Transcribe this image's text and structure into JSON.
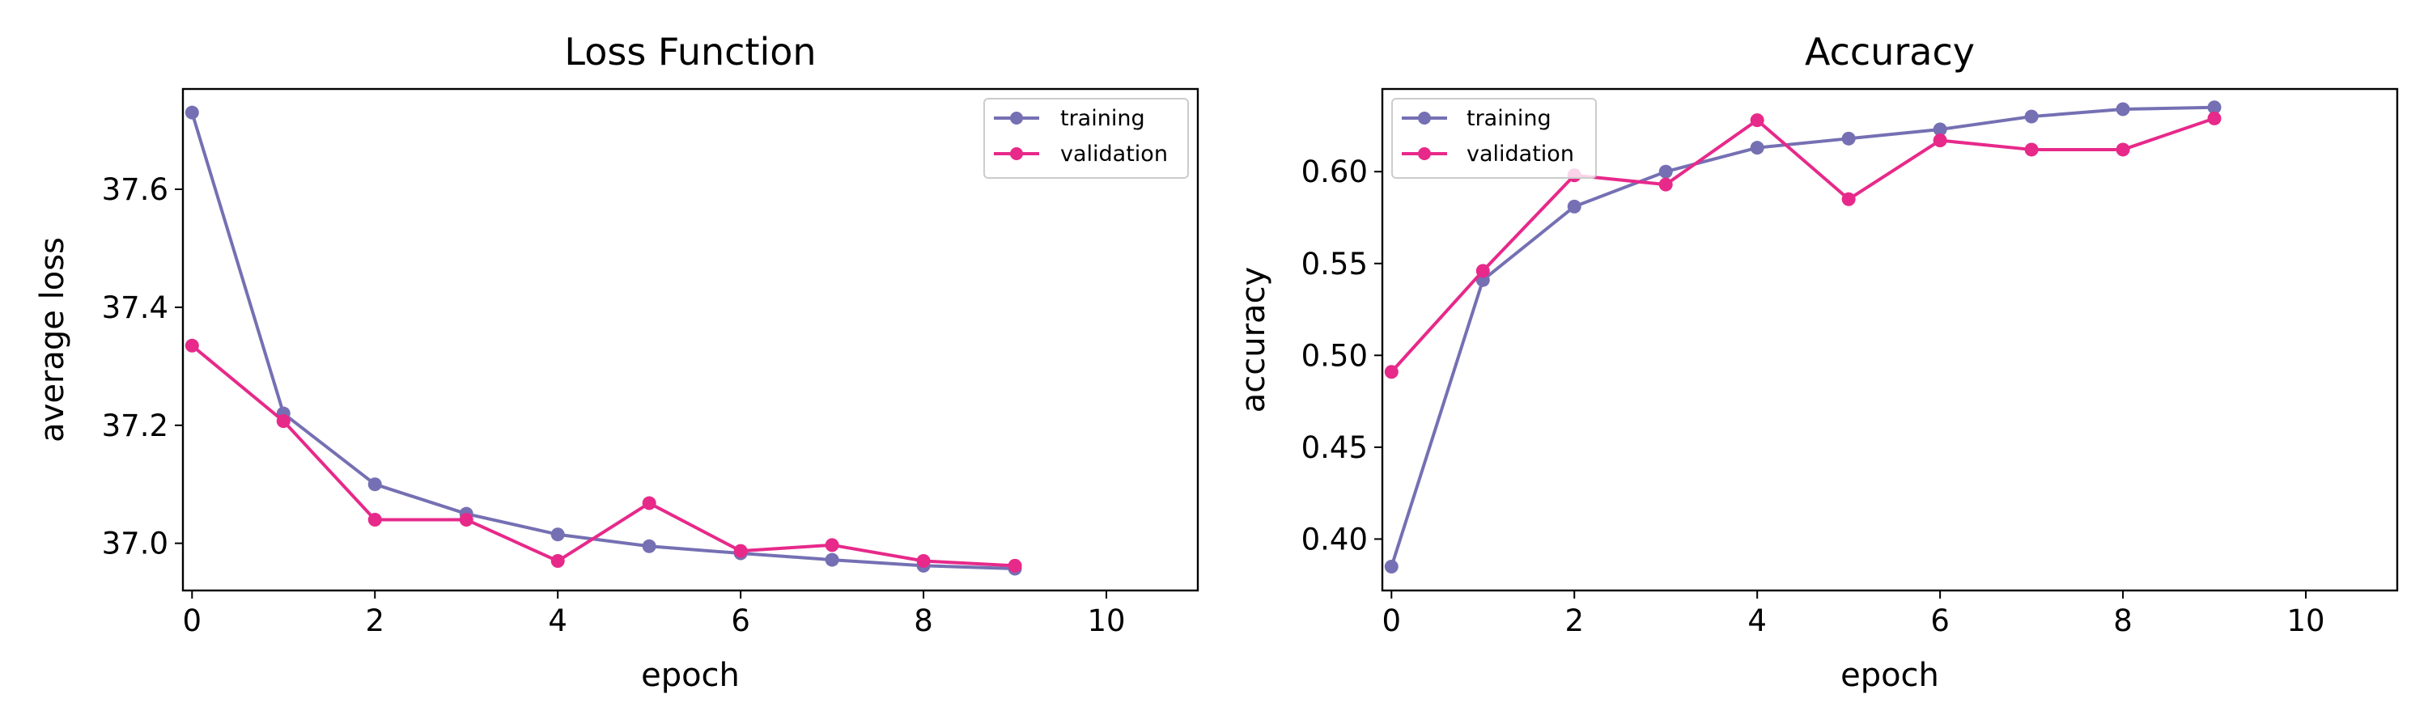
{
  "colors": {
    "training": "#7570b3",
    "validation": "#e7298a",
    "axis": "#000000",
    "legend_border": "#cccccc"
  },
  "chart_data": [
    {
      "type": "line",
      "title": "Loss Function",
      "xlabel": "epoch",
      "ylabel": "average loss",
      "xlim": [
        -0.1,
        11
      ],
      "ylim": [
        36.92,
        37.77
      ],
      "xticks": [
        0,
        2,
        4,
        6,
        8,
        10
      ],
      "yticks": [
        37.0,
        37.2,
        37.4,
        37.6
      ],
      "ytick_labels": [
        "37.0",
        "37.2",
        "37.4",
        "37.6"
      ],
      "legend_position": "upper right",
      "x": [
        0,
        1,
        2,
        3,
        4,
        5,
        6,
        7,
        8,
        9
      ],
      "series": [
        {
          "name": "training",
          "color": "#7570b3",
          "values": [
            37.73,
            37.22,
            37.1,
            37.05,
            37.015,
            36.995,
            36.983,
            36.972,
            36.962,
            36.957
          ]
        },
        {
          "name": "validation",
          "color": "#e7298a",
          "values": [
            37.335,
            37.207,
            37.04,
            37.04,
            36.97,
            37.068,
            36.987,
            36.997,
            36.97,
            36.962
          ]
        }
      ]
    },
    {
      "type": "line",
      "title": "Accuracy",
      "xlabel": "epoch",
      "ylabel": "accuracy",
      "xlim": [
        -0.1,
        11
      ],
      "ylim": [
        0.372,
        0.645
      ],
      "xticks": [
        0,
        2,
        4,
        6,
        8,
        10
      ],
      "yticks": [
        0.4,
        0.45,
        0.5,
        0.55,
        0.6
      ],
      "ytick_labels": [
        "0.40",
        "0.45",
        "0.50",
        "0.55",
        "0.60"
      ],
      "legend_position": "upper left",
      "x": [
        0,
        1,
        2,
        3,
        4,
        5,
        6,
        7,
        8,
        9
      ],
      "series": [
        {
          "name": "training",
          "color": "#7570b3",
          "values": [
            0.385,
            0.541,
            0.581,
            0.6,
            0.613,
            0.618,
            0.623,
            0.63,
            0.634,
            0.635
          ]
        },
        {
          "name": "validation",
          "color": "#e7298a",
          "values": [
            0.491,
            0.546,
            0.598,
            0.593,
            0.628,
            0.585,
            0.617,
            0.612,
            0.612,
            0.629
          ]
        }
      ]
    }
  ]
}
